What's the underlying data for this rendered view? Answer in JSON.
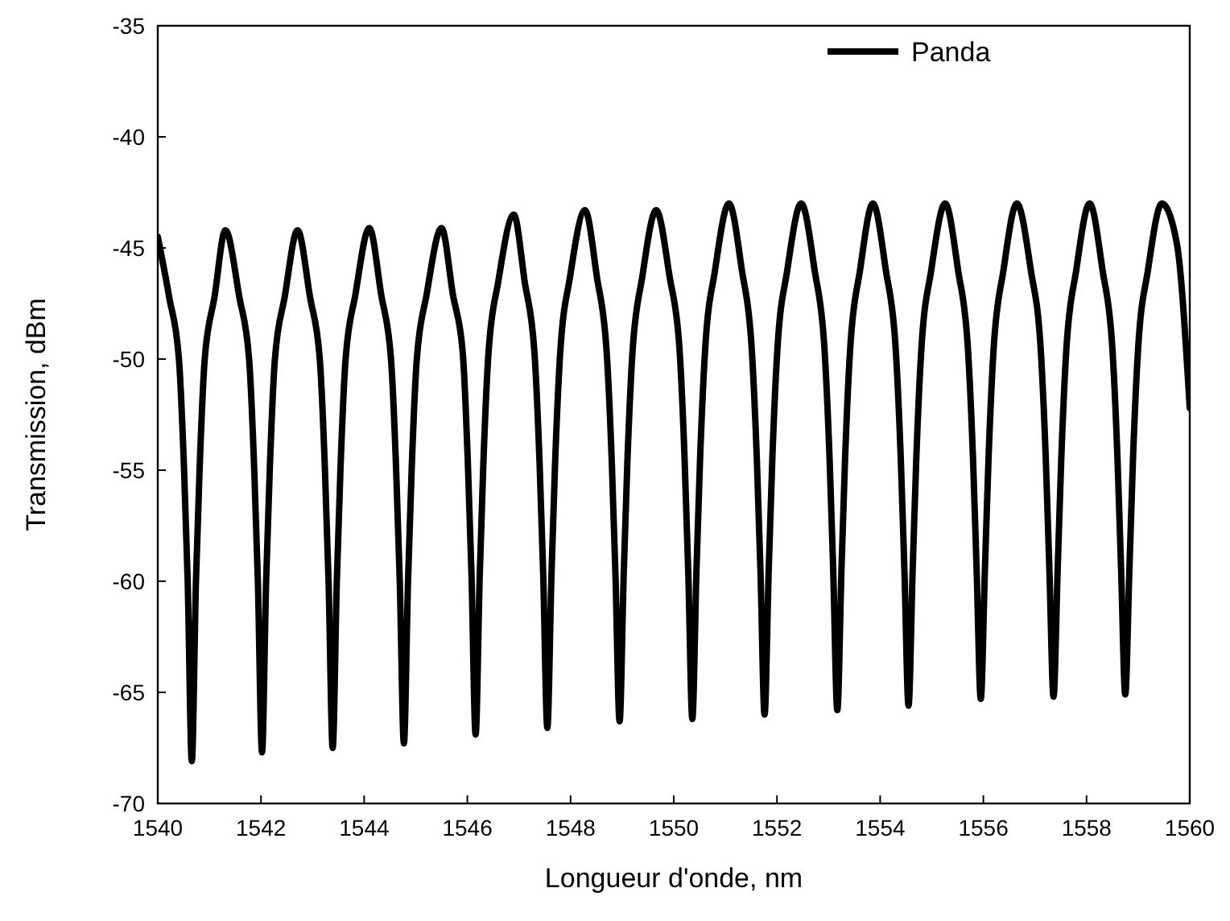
{
  "chart_data": {
    "type": "line",
    "xlabel": "Longueur d'onde, nm",
    "ylabel": "Transmission, dBm",
    "xlim": [
      1540,
      1560
    ],
    "xticks": [
      1540,
      1542,
      1544,
      1546,
      1548,
      1550,
      1552,
      1554,
      1556,
      1558,
      1560
    ],
    "ylim": [
      -70,
      -35
    ],
    "yticks": [
      -70,
      -65,
      -60,
      -55,
      -50,
      -45,
      -40,
      -35
    ],
    "grid": false,
    "legend": "top right",
    "marker": "none",
    "line_style": "solid",
    "series": [
      {
        "name": "Panda",
        "color": "#000000",
        "x": [
          1540,
          1540.22,
          1540.41,
          1540.51,
          1540.58,
          1540.66,
          1540.74,
          1540.81,
          1540.91,
          1541.1,
          1541.31,
          1541.58,
          1541.77,
          1541.87,
          1541.94,
          1542.02,
          1542.1,
          1542.17,
          1542.27,
          1542.46,
          1542.71,
          1542.95,
          1543.14,
          1543.24,
          1543.31,
          1543.39,
          1543.47,
          1543.54,
          1543.64,
          1543.83,
          1544.1,
          1544.33,
          1544.52,
          1544.62,
          1544.69,
          1544.77,
          1544.85,
          1544.92,
          1545.02,
          1545.21,
          1545.5,
          1545.72,
          1545.91,
          1546.01,
          1546.08,
          1546.16,
          1546.24,
          1546.31,
          1546.41,
          1546.6,
          1546.9,
          1547.11,
          1547.3,
          1547.4,
          1547.47,
          1547.55,
          1547.63,
          1547.7,
          1547.8,
          1547.99,
          1548.28,
          1548.51,
          1548.7,
          1548.8,
          1548.87,
          1548.95,
          1549.03,
          1549.1,
          1549.2,
          1549.39,
          1549.66,
          1549.92,
          1550.11,
          1550.21,
          1550.28,
          1550.36,
          1550.44,
          1550.51,
          1550.61,
          1550.8,
          1551.07,
          1551.32,
          1551.51,
          1551.61,
          1551.68,
          1551.76,
          1551.84,
          1551.91,
          1552.01,
          1552.2,
          1552.47,
          1552.73,
          1552.92,
          1553.02,
          1553.09,
          1553.17,
          1553.25,
          1553.32,
          1553.42,
          1553.61,
          1553.86,
          1554.11,
          1554.3,
          1554.4,
          1554.47,
          1554.55,
          1554.63,
          1554.7,
          1554.8,
          1554.99,
          1555.26,
          1555.51,
          1555.7,
          1555.8,
          1555.87,
          1555.95,
          1556.03,
          1556.1,
          1556.2,
          1556.39,
          1556.65,
          1556.92,
          1557.11,
          1557.21,
          1557.28,
          1557.36,
          1557.44,
          1557.51,
          1557.61,
          1557.8,
          1558.06,
          1558.31,
          1558.5,
          1558.6,
          1558.67,
          1558.75,
          1558.83,
          1558.9,
          1559.0,
          1559.19,
          1559.46,
          1559.75,
          1560
        ],
        "values": [
          -44.5,
          -47.2,
          -50,
          -55,
          -60,
          -68.1,
          -60,
          -55,
          -50,
          -47.2,
          -44.2,
          -47.2,
          -50,
          -55,
          -60,
          -67.7,
          -60,
          -55,
          -50,
          -47.2,
          -44.2,
          -47.2,
          -50,
          -55,
          -60,
          -67.5,
          -60,
          -55,
          -50,
          -47.1,
          -44.1,
          -47.1,
          -50,
          -55,
          -60,
          -67.3,
          -60,
          -55,
          -50,
          -47.1,
          -44.1,
          -47.1,
          -49.7,
          -54.7,
          -59.7,
          -66.9,
          -59.7,
          -54.7,
          -49.7,
          -46.5,
          -43.5,
          -46.5,
          -49.7,
          -54.7,
          -59.7,
          -66.6,
          -59.7,
          -54.7,
          -49.7,
          -46.3,
          -43.3,
          -46.3,
          -49.7,
          -54.7,
          -59.7,
          -66.3,
          -59.7,
          -54.7,
          -49.7,
          -46.3,
          -43.3,
          -46.3,
          -49.5,
          -54.5,
          -59.5,
          -66.2,
          -59.5,
          -54.5,
          -49.5,
          -46,
          -43,
          -46,
          -49.5,
          -54.5,
          -59.5,
          -66,
          -59.5,
          -54.5,
          -49.5,
          -46,
          -43,
          -46,
          -49.5,
          -54.5,
          -59.5,
          -65.8,
          -59.5,
          -54.5,
          -49.5,
          -46,
          -43,
          -46,
          -49.5,
          -54.5,
          -59.5,
          -65.6,
          -59.5,
          -54.5,
          -49.5,
          -46,
          -43,
          -46,
          -49.5,
          -54.5,
          -59.5,
          -65.3,
          -59.5,
          -54.5,
          -49.5,
          -46,
          -43,
          -46,
          -49.5,
          -54.5,
          -59.5,
          -65.2,
          -59.5,
          -54.5,
          -49.5,
          -46,
          -43,
          -46,
          -49.5,
          -54.5,
          -59.5,
          -65.1,
          -59.5,
          -54.5,
          -49.5,
          -46,
          -43,
          -44.8,
          -52.2
        ]
      }
    ]
  }
}
